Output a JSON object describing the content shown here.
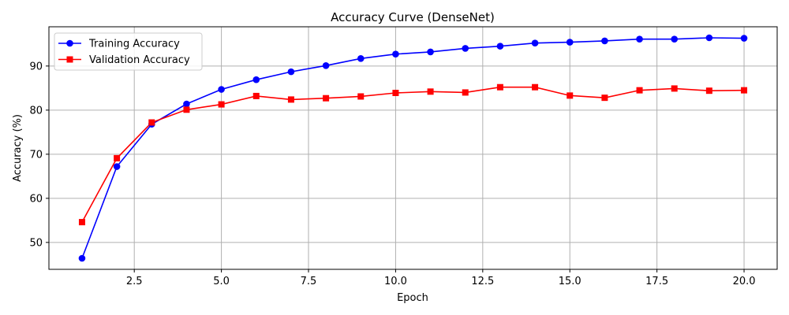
{
  "chart_data": {
    "type": "line",
    "title": "Accuracy Curve (DenseNet)",
    "xlabel": "Epoch",
    "ylabel": "Accuracy (%)",
    "xlim": [
      0.05,
      20.95
    ],
    "ylim": [
      43.9,
      98.9
    ],
    "xticks": [
      2.5,
      5.0,
      7.5,
      10.0,
      12.5,
      15.0,
      17.5,
      20.0
    ],
    "xtick_labels": [
      "2.5",
      "5.0",
      "7.5",
      "10.0",
      "12.5",
      "15.0",
      "17.5",
      "20.0"
    ],
    "yticks": [
      50,
      60,
      70,
      80,
      90
    ],
    "ytick_labels": [
      "50",
      "60",
      "70",
      "80",
      "90"
    ],
    "grid": true,
    "legend_position": "top-left",
    "x": [
      1,
      2,
      3,
      4,
      5,
      6,
      7,
      8,
      9,
      10,
      11,
      12,
      13,
      14,
      15,
      16,
      17,
      18,
      19,
      20
    ],
    "series": [
      {
        "name": "Training Accuracy",
        "color": "#0000ff",
        "marker": "circle",
        "values": [
          46.4,
          67.2,
          76.8,
          81.4,
          84.7,
          86.9,
          88.7,
          90.1,
          91.7,
          92.7,
          93.2,
          94.0,
          94.5,
          95.2,
          95.4,
          95.7,
          96.1,
          96.1,
          96.4,
          96.3
        ]
      },
      {
        "name": "Validation Accuracy",
        "color": "#ff0000",
        "marker": "square",
        "values": [
          54.6,
          69.1,
          77.2,
          80.1,
          81.3,
          83.2,
          82.4,
          82.7,
          83.1,
          83.9,
          84.2,
          84.0,
          85.2,
          85.2,
          83.3,
          82.8,
          84.5,
          84.9,
          84.4,
          84.5
        ]
      }
    ]
  }
}
